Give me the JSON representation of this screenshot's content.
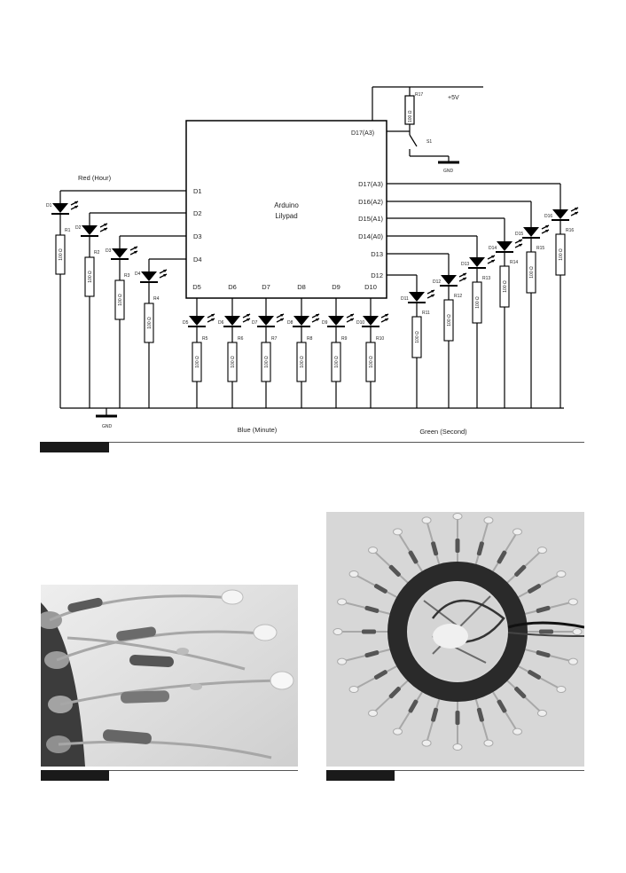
{
  "schematic": {
    "mcu": {
      "line1": "Arduino",
      "line2": "Lilypad"
    },
    "power": {
      "resistor_id": "R17",
      "resistor_value": "100 Ω",
      "supply": "+5V",
      "input_pin": "D17(A3)",
      "switch_id": "S1",
      "ground": "GND"
    },
    "group_labels": {
      "hour": "Red (Hour)",
      "minute": "Blue (Minute)",
      "second": "Green (Second)"
    },
    "ground_label": "GND",
    "resistor_value": "100 Ω",
    "left_pins": [
      "D1",
      "D2",
      "D3",
      "D4"
    ],
    "hour_leds": [
      {
        "led": "D1",
        "res": "R1"
      },
      {
        "led": "D2",
        "res": "R2"
      },
      {
        "led": "D3",
        "res": "R3"
      },
      {
        "led": "D4",
        "res": "R4"
      }
    ],
    "bottom_pins": [
      "D5",
      "D6",
      "D7",
      "D8",
      "D9",
      "D10"
    ],
    "minute_leds": [
      {
        "led": "D5",
        "res": "R5"
      },
      {
        "led": "D6",
        "res": "R6"
      },
      {
        "led": "D7",
        "res": "R7"
      },
      {
        "led": "D8",
        "res": "R8"
      },
      {
        "led": "D9",
        "res": "R9"
      },
      {
        "led": "D10",
        "res": "R10"
      }
    ],
    "right_pins": [
      "D17(A3)",
      "D16(A2)",
      "D15(A1)",
      "D14(A0)",
      "D13",
      "D12"
    ],
    "second_leds": [
      {
        "led": "D11",
        "res": "R11"
      },
      {
        "led": "D12",
        "res": "R12"
      },
      {
        "led": "D13",
        "res": "R13"
      },
      {
        "led": "D14",
        "res": "R14"
      },
      {
        "led": "D15",
        "res": "R15"
      },
      {
        "led": "D16",
        "res": "R16"
      }
    ]
  },
  "icons": {
    "led": "led-symbol-icon",
    "resistor": "resistor-symbol-icon",
    "ground": "ground-symbol-icon",
    "switch": "switch-symbol-icon"
  }
}
